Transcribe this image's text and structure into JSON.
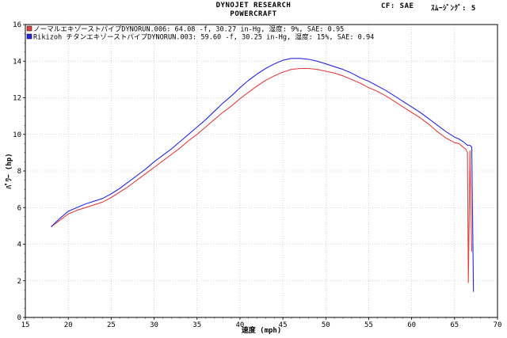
{
  "header": {
    "title_line1": "DYNOJET  RESEARCH",
    "title_line2": "POWERCRAFT",
    "correction": "CF: SAE",
    "smoothing": "ｽﾑｰｼﾞﾝｸﾞ: 5"
  },
  "colors": {
    "run1": "#e04040",
    "run2": "#2828d8",
    "grid": "#b8b8b8"
  },
  "chart_data": {
    "type": "line",
    "xlabel": "速度 (mph)",
    "ylabel": "ﾊﾟﾜｰ (hp)",
    "xlim": [
      15,
      70
    ],
    "ylim": [
      0,
      16
    ],
    "xticks": [
      15,
      20,
      25,
      30,
      35,
      40,
      45,
      50,
      55,
      60,
      65,
      70
    ],
    "yticks": [
      0,
      2,
      4,
      6,
      8,
      10,
      12,
      14,
      16
    ],
    "grid": true,
    "legend_position": "top-left",
    "series": [
      {
        "name": "ノーマルエキゾーストパイプDYNORUN.006: 64.08 -f, 30.27 in-Hg, 湿度: 9%, SAE: 0.95",
        "color": "#e04040",
        "x": [
          18,
          19,
          20,
          21,
          22,
          23,
          24,
          25,
          26,
          27,
          28,
          29,
          30,
          31,
          32,
          33,
          34,
          35,
          36,
          37,
          38,
          39,
          40,
          41,
          42,
          43,
          44,
          45,
          46,
          47,
          48,
          49,
          50,
          51,
          52,
          53,
          54,
          55,
          56,
          57,
          58,
          59,
          60,
          61,
          62,
          63,
          64,
          65,
          65.5,
          66,
          66.3,
          66.5,
          66.6,
          66.8,
          67
        ],
        "y": [
          4.95,
          5.3,
          5.65,
          5.85,
          6.0,
          6.15,
          6.3,
          6.55,
          6.85,
          7.15,
          7.5,
          7.85,
          8.2,
          8.55,
          8.9,
          9.25,
          9.65,
          10.0,
          10.4,
          10.8,
          11.2,
          11.55,
          11.95,
          12.3,
          12.65,
          12.95,
          13.2,
          13.4,
          13.55,
          13.6,
          13.6,
          13.55,
          13.45,
          13.35,
          13.2,
          13.0,
          12.8,
          12.55,
          12.35,
          12.1,
          11.8,
          11.5,
          11.2,
          10.9,
          10.55,
          10.15,
          9.8,
          9.55,
          9.5,
          9.3,
          9.2,
          9.0,
          1.9,
          9.1,
          3.6
        ]
      },
      {
        "name": "Rikizoh  チタンエキゾーストパイプDYNORUN.003: 59.60 -f, 30.25 in-Hg, 湿度: 15%, SAE: 0.94",
        "color": "#2828d8",
        "x": [
          18,
          19,
          20,
          21,
          22,
          23,
          24,
          25,
          26,
          27,
          28,
          29,
          30,
          31,
          32,
          33,
          34,
          35,
          36,
          37,
          38,
          39,
          40,
          41,
          42,
          43,
          44,
          45,
          46,
          47,
          48,
          49,
          50,
          51,
          52,
          53,
          54,
          55,
          56,
          57,
          58,
          59,
          60,
          61,
          62,
          63,
          64,
          65,
          65.5,
          66,
          66.5,
          66.8,
          67,
          67.2
        ],
        "y": [
          4.95,
          5.4,
          5.8,
          6.0,
          6.2,
          6.35,
          6.5,
          6.75,
          7.05,
          7.4,
          7.75,
          8.1,
          8.5,
          8.85,
          9.2,
          9.6,
          10.0,
          10.4,
          10.8,
          11.25,
          11.7,
          12.1,
          12.55,
          12.95,
          13.3,
          13.6,
          13.85,
          14.05,
          14.15,
          14.15,
          14.1,
          14.0,
          13.85,
          13.7,
          13.55,
          13.35,
          13.1,
          12.9,
          12.65,
          12.4,
          12.1,
          11.8,
          11.5,
          11.2,
          10.85,
          10.5,
          10.15,
          9.85,
          9.75,
          9.6,
          9.4,
          9.4,
          9.3,
          1.4
        ]
      }
    ]
  }
}
